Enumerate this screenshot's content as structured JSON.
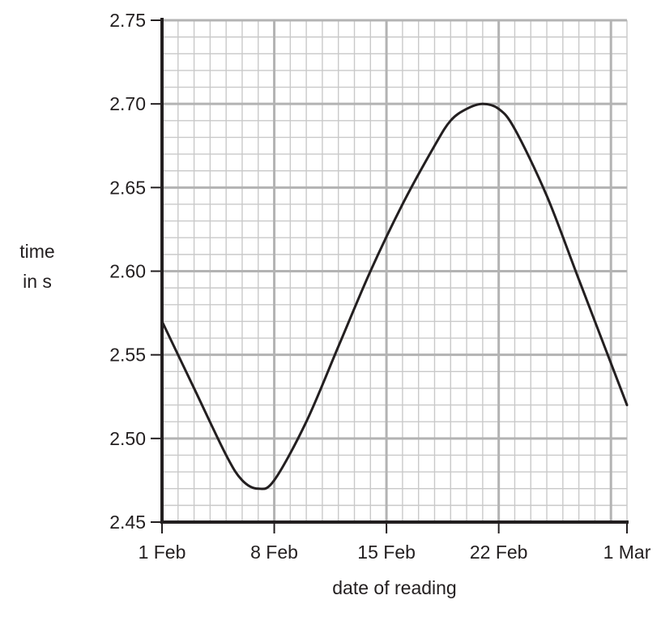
{
  "chart_data": {
    "type": "line",
    "title": "",
    "ylabel": [
      "time",
      "in s"
    ],
    "xlabel": "date of reading",
    "xlim": [
      "2024-02-01",
      "2024-03-01"
    ],
    "ylim": [
      2.45,
      2.75
    ],
    "x_tick_labels": [
      "1 Feb",
      "8 Feb",
      "15 Feb",
      "22 Feb",
      "1 Mar"
    ],
    "x_ticks": [
      "2024-02-01",
      "2024-02-08",
      "2024-02-15",
      "2024-02-22",
      "2024-03-01"
    ],
    "y_tick_labels": [
      "2.45",
      "2.50",
      "2.55",
      "2.60",
      "2.65",
      "2.70",
      "2.75"
    ],
    "y_ticks": [
      2.45,
      2.5,
      2.55,
      2.6,
      2.65,
      2.7,
      2.75
    ],
    "grid": true,
    "minor_grid": true,
    "series": [
      {
        "x": [
          "2024-02-01",
          "2024-02-03",
          "2024-02-05",
          "2024-02-06",
          "2024-02-07",
          "2024-02-08",
          "2024-02-10",
          "2024-02-12",
          "2024-02-14",
          "2024-02-16",
          "2024-02-18",
          "2024-02-19",
          "2024-02-20",
          "2024-02-21",
          "2024-02-22",
          "2024-02-23",
          "2024-02-25",
          "2024-02-27",
          "2024-03-01"
        ],
        "y": [
          2.57,
          2.53,
          2.49,
          2.475,
          2.47,
          2.475,
          2.51,
          2.555,
          2.6,
          2.64,
          2.675,
          2.69,
          2.697,
          2.7,
          2.697,
          2.685,
          2.645,
          2.595,
          2.52
        ]
      }
    ],
    "colors": {
      "line": "#231f20",
      "axis": "#231f20",
      "grid_major": "#b3b3b3",
      "grid_minor": "#c9c9c9"
    }
  }
}
